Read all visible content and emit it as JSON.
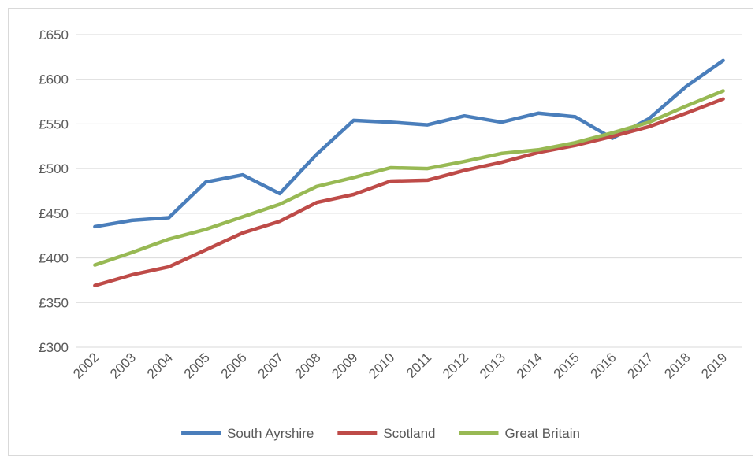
{
  "chart_data": {
    "type": "line",
    "title": "",
    "xlabel": "",
    "ylabel": "",
    "categories": [
      "2002",
      "2003",
      "2004",
      "2005",
      "2006",
      "2007",
      "2008",
      "2009",
      "2010",
      "2011",
      "2012",
      "2013",
      "2014",
      "2015",
      "2016",
      "2017",
      "2018",
      "2019"
    ],
    "yticks": [
      "£300",
      "£350",
      "£400",
      "£450",
      "£500",
      "£550",
      "£600",
      "£650"
    ],
    "ylim": [
      300,
      650
    ],
    "grid": true,
    "legend": "bottom",
    "series": [
      {
        "name": "South Ayrshire",
        "color": "#4a7ebb",
        "values": [
          435,
          442,
          445,
          485,
          493,
          472,
          516,
          554,
          552,
          549,
          559,
          552,
          562,
          558,
          534,
          556,
          592,
          621
        ]
      },
      {
        "name": "Scotland",
        "color": "#be4b48",
        "values": [
          369,
          381,
          390,
          409,
          428,
          441,
          462,
          471,
          486,
          487,
          498,
          507,
          518,
          526,
          536,
          547,
          562,
          578
        ]
      },
      {
        "name": "Great Britain",
        "color": "#98b954",
        "values": [
          392,
          406,
          421,
          432,
          446,
          460,
          480,
          490,
          501,
          500,
          508,
          517,
          521,
          529,
          540,
          552,
          570,
          587
        ]
      }
    ]
  }
}
